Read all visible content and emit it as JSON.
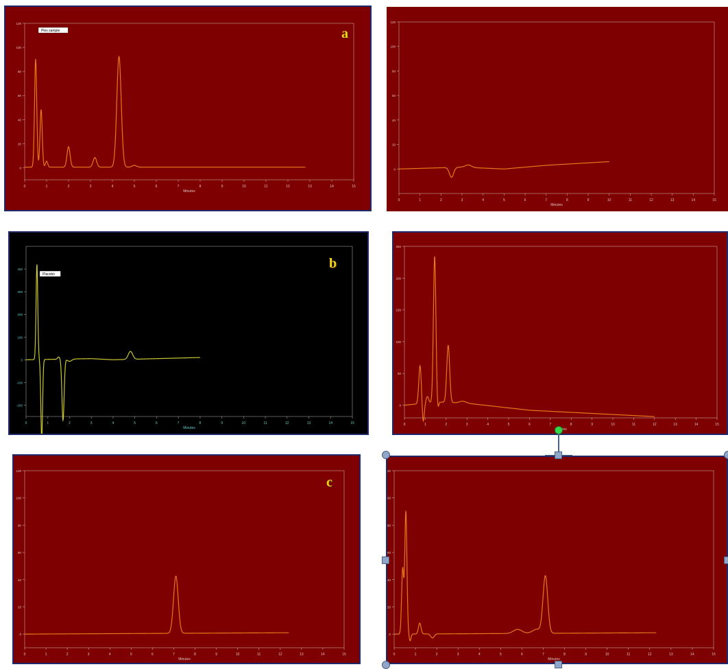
{
  "panel_letters": {
    "a": "a",
    "b": "b",
    "c": "c"
  },
  "colors": {
    "red_bg": "#7e0000",
    "black_bg": "#000000",
    "trace_orange": "#e8781a",
    "trace_yellow": "#c8c832",
    "axis_light": "#c8a8a8",
    "frame_blue": "#1e2a6a",
    "letter_yellow": "#f2d21b"
  },
  "chart_data": [
    {
      "id": "a",
      "type": "line",
      "xlabel": "Minutes",
      "xlim": [
        0,
        15
      ],
      "ylim": [
        -10,
        120
      ],
      "x_ticks": [
        "0",
        "1",
        "2",
        "3",
        "4",
        "5",
        "6",
        "7",
        "8",
        "9",
        "10",
        "11",
        "12",
        "13",
        "14",
        "15"
      ],
      "y_ticks": [
        "0",
        "20",
        "40",
        "60",
        "80",
        "100",
        "120"
      ],
      "label_box": "Plex sample",
      "baseline": 0.5,
      "peaks": [
        [
          0.5,
          90,
          0.05
        ],
        [
          0.75,
          48,
          0.05
        ],
        [
          1.0,
          5,
          0.05
        ],
        [
          2.0,
          17,
          0.07
        ],
        [
          3.2,
          8,
          0.08
        ],
        [
          4.3,
          92,
          0.1
        ],
        [
          5.0,
          1.5,
          0.1
        ]
      ],
      "x_end": 12.8
    },
    {
      "id": "a2",
      "type": "line",
      "xlabel": "Minutes",
      "xlim": [
        0,
        15
      ],
      "ylim": [
        -20,
        120
      ],
      "x_ticks": [
        "0",
        "1",
        "2",
        "3",
        "4",
        "5",
        "6",
        "7",
        "8",
        "9",
        "10",
        "11",
        "12",
        "13",
        "14",
        "15"
      ],
      "y_ticks": [
        "0",
        "20",
        "40",
        "60",
        "80",
        "100",
        "120"
      ],
      "label_box": "",
      "baseline": 0,
      "drift": [
        [
          0,
          0
        ],
        [
          2,
          1
        ],
        [
          3,
          1.5
        ],
        [
          5,
          0
        ],
        [
          7,
          3
        ],
        [
          10,
          6
        ]
      ],
      "peaks": [
        [
          2.5,
          -8,
          0.1
        ],
        [
          3.3,
          2,
          0.15
        ]
      ],
      "x_end": 10
    },
    {
      "id": "b",
      "type": "line",
      "xlabel": "Minutes",
      "xlim": [
        0,
        15
      ],
      "ylim": [
        -250,
        500
      ],
      "x_ticks": [
        "0",
        "1",
        "2",
        "3",
        "4",
        "5",
        "6",
        "7",
        "8",
        "9",
        "10",
        "11",
        "12",
        "13",
        "14",
        "15"
      ],
      "y_ticks": [
        "-200",
        "-100",
        "0",
        "100",
        "200",
        "300",
        "400"
      ],
      "label_box": "Placebo",
      "baseline": 0,
      "drift": [
        [
          0,
          0
        ],
        [
          3,
          5
        ],
        [
          4,
          0
        ],
        [
          8,
          10
        ]
      ],
      "peaks": [
        [
          0.5,
          420,
          0.04
        ],
        [
          0.72,
          -350,
          0.04
        ],
        [
          1.5,
          10,
          0.05
        ],
        [
          1.7,
          -270,
          0.05
        ],
        [
          2.0,
          -10,
          0.1
        ],
        [
          4.8,
          35,
          0.1
        ]
      ],
      "x_end": 8
    },
    {
      "id": "b2",
      "type": "line",
      "xlabel": "Minutes",
      "xlim": [
        0,
        15
      ],
      "ylim": [
        -20,
        250
      ],
      "x_ticks": [
        "0",
        "1",
        "2",
        "3",
        "4",
        "5",
        "6",
        "7",
        "8",
        "9",
        "10",
        "11",
        "12",
        "13",
        "14",
        "15"
      ],
      "y_ticks": [
        "0",
        "50",
        "100",
        "150",
        "200",
        "250"
      ],
      "label_box": "",
      "peak_text": "",
      "baseline": 0,
      "drift": [
        [
          0,
          0
        ],
        [
          1.6,
          5
        ],
        [
          3,
          3
        ],
        [
          6,
          -8
        ],
        [
          12,
          -18
        ]
      ],
      "peaks": [
        [
          0.75,
          60,
          0.06
        ],
        [
          0.9,
          -30,
          0.05
        ],
        [
          1.1,
          10,
          0.06
        ],
        [
          1.45,
          230,
          0.06
        ],
        [
          1.6,
          -12,
          0.04
        ],
        [
          2.1,
          90,
          0.07
        ],
        [
          2.8,
          3,
          0.15
        ]
      ],
      "x_end": 12
    },
    {
      "id": "c",
      "type": "line",
      "xlabel": "Minutes",
      "xlim": [
        0,
        15
      ],
      "ylim": [
        -10,
        120
      ],
      "x_ticks": [
        "0",
        "1",
        "2",
        "3",
        "4",
        "5",
        "6",
        "7",
        "8",
        "9",
        "10",
        "11",
        "12",
        "13",
        "14",
        "15"
      ],
      "y_ticks": [
        "0",
        "20",
        "40",
        "60",
        "80",
        "100",
        "120"
      ],
      "label_box": "",
      "peak_text": "",
      "baseline": 0,
      "drift": [
        [
          0,
          0
        ],
        [
          12,
          1
        ]
      ],
      "peaks": [
        [
          7.1,
          42,
          0.11
        ]
      ],
      "x_end": 12.4
    },
    {
      "id": "c2",
      "type": "line",
      "xlabel": "Minutes",
      "xlim": [
        0,
        15
      ],
      "ylim": [
        -10,
        120
      ],
      "x_ticks": [
        "0",
        "1",
        "2",
        "3",
        "4",
        "5",
        "6",
        "7",
        "8",
        "9",
        "10",
        "11",
        "12",
        "13",
        "14",
        "15"
      ],
      "y_ticks": [
        "0",
        "20",
        "40",
        "60",
        "80",
        "100",
        "120"
      ],
      "label_box": "",
      "peak_text": "",
      "baseline": 0,
      "drift": [
        [
          0,
          0
        ],
        [
          12,
          1
        ]
      ],
      "peaks": [
        [
          0.4,
          48,
          0.05
        ],
        [
          0.55,
          90,
          0.05
        ],
        [
          0.75,
          -5,
          0.04
        ],
        [
          1.2,
          8,
          0.06
        ],
        [
          1.8,
          -3,
          0.08
        ],
        [
          5.8,
          3,
          0.2
        ],
        [
          6.7,
          3,
          0.2
        ],
        [
          7.1,
          42,
          0.11
        ]
      ],
      "x_end": 12.3
    }
  ]
}
